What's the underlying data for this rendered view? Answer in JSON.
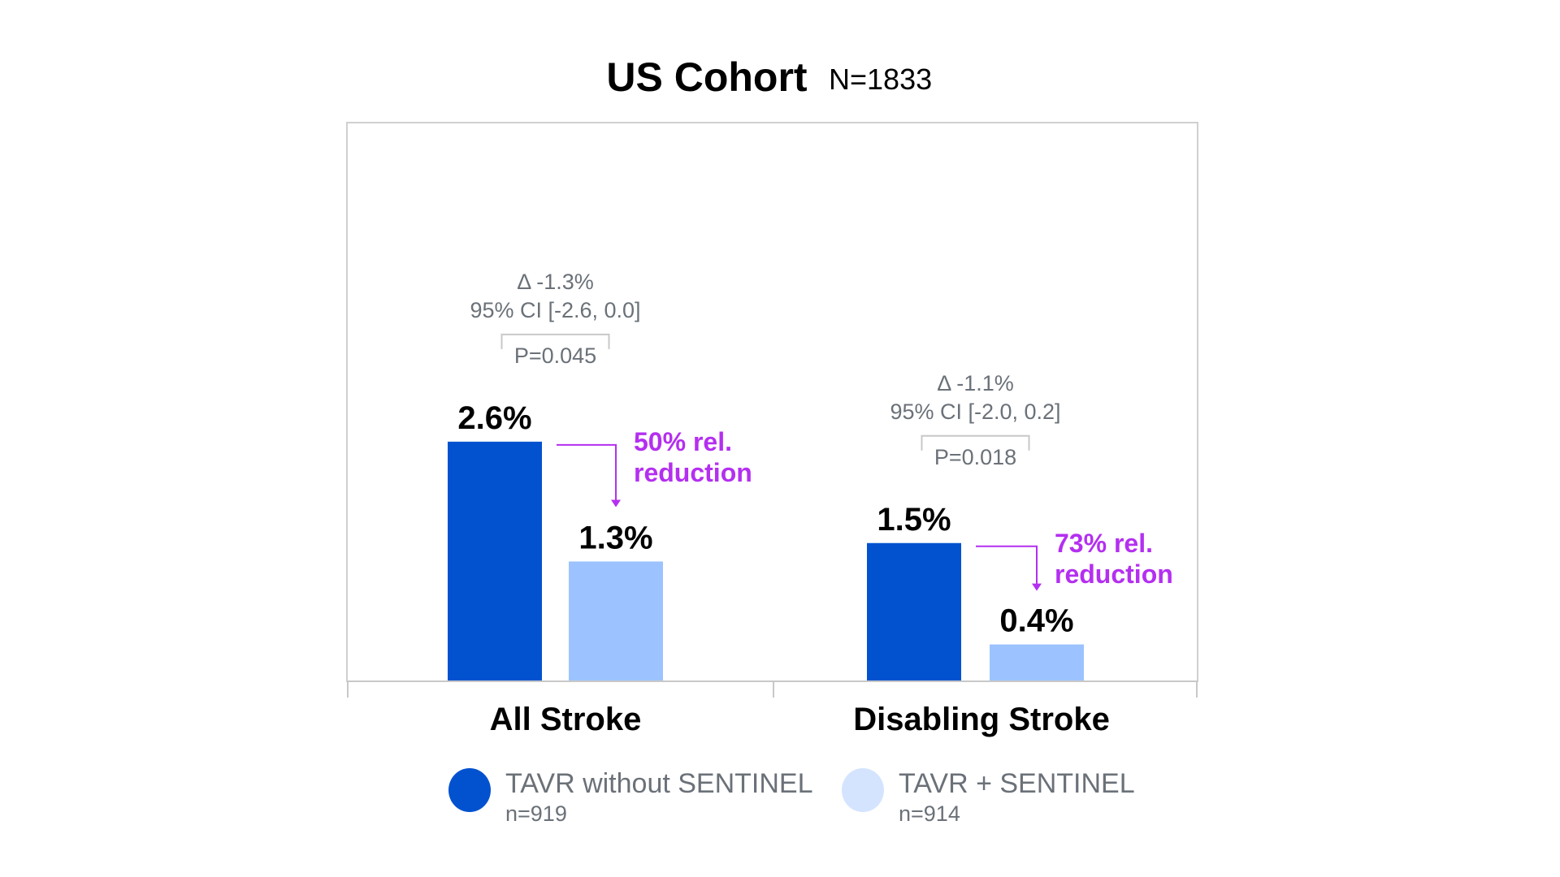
{
  "chart_data": {
    "type": "bar",
    "title": "US Cohort",
    "subtitle": "N=1833",
    "categories": [
      "All Stroke",
      "Disabling Stroke"
    ],
    "series": [
      {
        "name": "TAVR without SENTINEL",
        "n_label": "n=919",
        "color": "#0252d0",
        "values": [
          2.6,
          1.5
        ],
        "labels": [
          "2.6%",
          "1.5%"
        ]
      },
      {
        "name": "TAVR + SENTINEL",
        "n_label": "n=914",
        "color": "#9cc3ff",
        "legend_color": "#d4e4ff",
        "values": [
          1.3,
          0.4
        ],
        "labels": [
          "1.3%",
          "0.4%"
        ]
      }
    ],
    "annotations": [
      {
        "delta": "Δ -1.3%",
        "ci": "95% CI [-2.6, 0.0]",
        "p": "P=0.045",
        "rel_line1": "50% rel.",
        "rel_line2": "reduction"
      },
      {
        "delta": "Δ -1.1%",
        "ci": "95% CI [-2.0, 0.2]",
        "p": "P=0.018",
        "rel_line1": "73% rel.",
        "rel_line2": "reduction"
      }
    ],
    "ylim": [
      0,
      6
    ],
    "xlabel": "",
    "ylabel": "",
    "grid": false,
    "legend": "bottom",
    "accent_color": "#b42ff0"
  }
}
